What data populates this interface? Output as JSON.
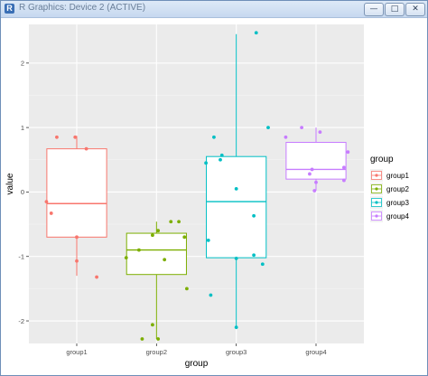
{
  "window": {
    "title": "R Graphics: Device 2 (ACTIVE)",
    "minimize_glyph": "—",
    "maximize_glyph": "□",
    "close_glyph": "✕"
  },
  "chart_data": {
    "type": "boxplot",
    "xlabel": "group",
    "ylabel": "value",
    "ylim": [
      -2.35,
      2.6
    ],
    "yticks": [
      -2,
      -1,
      0,
      1,
      2
    ],
    "categories": [
      "group1",
      "group2",
      "group3",
      "group4"
    ],
    "colors": [
      "#F8766D",
      "#7CAE00",
      "#00BFC4",
      "#C77CFF"
    ],
    "background": "#EBEBEB",
    "grid": true,
    "legend": {
      "title": "group",
      "position": "right"
    },
    "series": [
      {
        "name": "group1",
        "box": {
          "lower_whisker": -1.3,
          "q1": -0.7,
          "median": -0.18,
          "q3": 0.67,
          "upper_whisker": 0.87
        },
        "points": [
          {
            "jitter": -0.25,
            "y": 0.85
          },
          {
            "jitter": -0.02,
            "y": 0.85
          },
          {
            "jitter": 0.12,
            "y": 0.67
          },
          {
            "jitter": -0.38,
            "y": -0.15
          },
          {
            "jitter": -0.32,
            "y": -0.33
          },
          {
            "jitter": 0.0,
            "y": -0.7
          },
          {
            "jitter": 0.0,
            "y": -1.07
          },
          {
            "jitter": 0.25,
            "y": -1.32
          }
        ]
      },
      {
        "name": "group2",
        "box": {
          "lower_whisker": -2.28,
          "q1": -1.28,
          "median": -0.9,
          "q3": -0.64,
          "upper_whisker": -0.46
        },
        "points": [
          {
            "jitter": 0.28,
            "y": -0.46
          },
          {
            "jitter": 0.18,
            "y": -0.46
          },
          {
            "jitter": 0.02,
            "y": -0.6
          },
          {
            "jitter": -0.05,
            "y": -0.67
          },
          {
            "jitter": 0.35,
            "y": -0.7
          },
          {
            "jitter": -0.22,
            "y": -0.9
          },
          {
            "jitter": -0.38,
            "y": -1.02
          },
          {
            "jitter": 0.1,
            "y": -1.05
          },
          {
            "jitter": 0.38,
            "y": -1.5
          },
          {
            "jitter": -0.05,
            "y": -2.06
          },
          {
            "jitter": -0.18,
            "y": -2.28
          },
          {
            "jitter": 0.02,
            "y": -2.28
          }
        ]
      },
      {
        "name": "group3",
        "box": {
          "lower_whisker": -2.1,
          "q1": -1.02,
          "median": -0.15,
          "q3": 0.55,
          "upper_whisker": 2.45
        },
        "points": [
          {
            "jitter": 0.25,
            "y": 2.47
          },
          {
            "jitter": 0.4,
            "y": 1.0
          },
          {
            "jitter": -0.28,
            "y": 0.85
          },
          {
            "jitter": -0.18,
            "y": 0.57
          },
          {
            "jitter": -0.2,
            "y": 0.5
          },
          {
            "jitter": -0.38,
            "y": 0.45
          },
          {
            "jitter": 0.0,
            "y": 0.05
          },
          {
            "jitter": 0.22,
            "y": -0.37
          },
          {
            "jitter": -0.35,
            "y": -0.75
          },
          {
            "jitter": 0.22,
            "y": -0.98
          },
          {
            "jitter": 0.0,
            "y": -1.03
          },
          {
            "jitter": 0.33,
            "y": -1.12
          },
          {
            "jitter": -0.32,
            "y": -1.6
          },
          {
            "jitter": 0.0,
            "y": -2.1
          }
        ]
      },
      {
        "name": "group4",
        "box": {
          "lower_whisker": 0.02,
          "q1": 0.2,
          "median": 0.35,
          "q3": 0.77,
          "upper_whisker": 1.0
        },
        "points": [
          {
            "jitter": -0.18,
            "y": 1.0
          },
          {
            "jitter": 0.05,
            "y": 0.93
          },
          {
            "jitter": -0.38,
            "y": 0.85
          },
          {
            "jitter": 0.4,
            "y": 0.62
          },
          {
            "jitter": 0.35,
            "y": 0.38
          },
          {
            "jitter": -0.05,
            "y": 0.35
          },
          {
            "jitter": -0.08,
            "y": 0.28
          },
          {
            "jitter": 0.0,
            "y": 0.15
          },
          {
            "jitter": 0.35,
            "y": 0.18
          },
          {
            "jitter": -0.02,
            "y": 0.02
          }
        ]
      }
    ]
  }
}
